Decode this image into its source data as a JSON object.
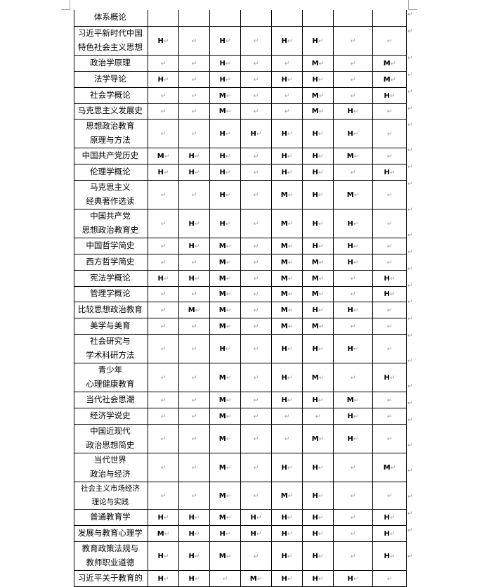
{
  "return_mark": "↵",
  "rows": [
    {
      "name": [
        "体系概论"
      ],
      "cells": null
    },
    {
      "name": [
        "习近平新时代中国",
        "特色社会主义思想"
      ],
      "cells": [
        "H",
        "",
        "H",
        "",
        "H",
        "H",
        "",
        ""
      ]
    },
    {
      "name": [
        "政治学原理"
      ],
      "cells": [
        "",
        "",
        "H",
        "",
        "",
        "M",
        "",
        "M"
      ]
    },
    {
      "name": [
        "法学导论"
      ],
      "cells": [
        "H",
        "",
        "H",
        "",
        "H",
        "H",
        "",
        "M"
      ]
    },
    {
      "name": [
        "社会学概论"
      ],
      "cells": [
        "",
        "",
        "M",
        "",
        "",
        "M",
        "",
        "H"
      ]
    },
    {
      "name": [
        "马克思主义发展史"
      ],
      "cells": [
        "",
        "",
        "M",
        "",
        "",
        "M",
        "H",
        ""
      ]
    },
    {
      "name": [
        "思想政治教育",
        "原理与方法"
      ],
      "cells": [
        "",
        "",
        "H",
        "H",
        "H",
        "H",
        "H",
        ""
      ]
    },
    {
      "name": [
        "中国共产党历史"
      ],
      "cells": [
        "M",
        "H",
        "H",
        "",
        "H",
        "H",
        "M",
        ""
      ]
    },
    {
      "name": [
        "伦理学概论"
      ],
      "cells": [
        "H",
        "H",
        "H",
        "",
        "H",
        "H",
        "",
        "H"
      ]
    },
    {
      "name": [
        "马克思主义",
        "经典著作选读"
      ],
      "cells": [
        "",
        "",
        "H",
        "",
        "M",
        "H",
        "M",
        ""
      ]
    },
    {
      "name": [
        "中国共产党",
        "思想政治教育史"
      ],
      "cells": [
        "",
        "H",
        "H",
        "",
        "M",
        "H",
        "H",
        ""
      ]
    },
    {
      "name": [
        "中国哲学简史"
      ],
      "cells": [
        "",
        "H",
        "M",
        "",
        "M",
        "H",
        "H",
        ""
      ]
    },
    {
      "name": [
        "西方哲学简史"
      ],
      "cells": [
        "",
        "",
        "M",
        "",
        "M",
        "M",
        "H",
        ""
      ]
    },
    {
      "name": [
        "宪法学概论"
      ],
      "cells": [
        "H",
        "H",
        "M",
        "",
        "M",
        "M",
        "",
        "H"
      ]
    },
    {
      "name": [
        "管理学概论"
      ],
      "cells": [
        "",
        "",
        "M",
        "",
        "M",
        "M",
        "",
        "H"
      ]
    },
    {
      "name": [
        "比较思想政治教育"
      ],
      "cells": [
        "",
        "M",
        "M",
        "",
        "M",
        "H",
        "H",
        ""
      ]
    },
    {
      "name": [
        "美学与美育"
      ],
      "cells": [
        "",
        "",
        "M",
        "",
        "M",
        "M",
        "",
        ""
      ]
    },
    {
      "name": [
        "社会研究与",
        "学术科研方法"
      ],
      "cells": [
        "",
        "",
        "H",
        "",
        "H",
        "H",
        "H",
        ""
      ]
    },
    {
      "name": [
        "青少年",
        "心理健康教育"
      ],
      "cells": [
        "",
        "",
        "M",
        "",
        "H",
        "M",
        "",
        "H"
      ]
    },
    {
      "name": [
        "当代社会思潮"
      ],
      "cells": [
        "",
        "",
        "M",
        "",
        "H",
        "H",
        "M",
        ""
      ]
    },
    {
      "name": [
        "经济学说史"
      ],
      "cells": [
        "",
        "",
        "M",
        "",
        "",
        "",
        "H",
        ""
      ]
    },
    {
      "name": [
        "中国近现代",
        "政治思想简史"
      ],
      "cells": [
        "",
        "",
        "M",
        "",
        "",
        "M",
        "H",
        ""
      ]
    },
    {
      "name": [
        "当代世界",
        "政治与经济"
      ],
      "cells": [
        "",
        "",
        "M",
        "",
        "H",
        "H",
        "",
        "M"
      ]
    },
    {
      "name": [
        "社会主义市场经济",
        "理论与实践"
      ],
      "cells": [
        "",
        "",
        "M",
        "",
        "M",
        "H",
        "",
        ""
      ]
    },
    {
      "name": [
        "普通教育学"
      ],
      "cells": [
        "H",
        "H",
        "M",
        "H",
        "H",
        "H",
        "",
        "H"
      ]
    },
    {
      "name": [
        "发展与教育心理学"
      ],
      "cells": [
        "M",
        "H",
        "H",
        "H",
        "H",
        "H",
        "",
        "H"
      ]
    },
    {
      "name": [
        "教育政策法规与",
        "教师职业道德"
      ],
      "cells": [
        "H",
        "H",
        "M",
        "",
        "H",
        "H",
        "",
        "H"
      ]
    },
    {
      "name": [
        "习近平关于教育的"
      ],
      "cells": [
        "H",
        "H",
        "",
        "M",
        "H",
        "H",
        "H",
        ""
      ]
    }
  ]
}
